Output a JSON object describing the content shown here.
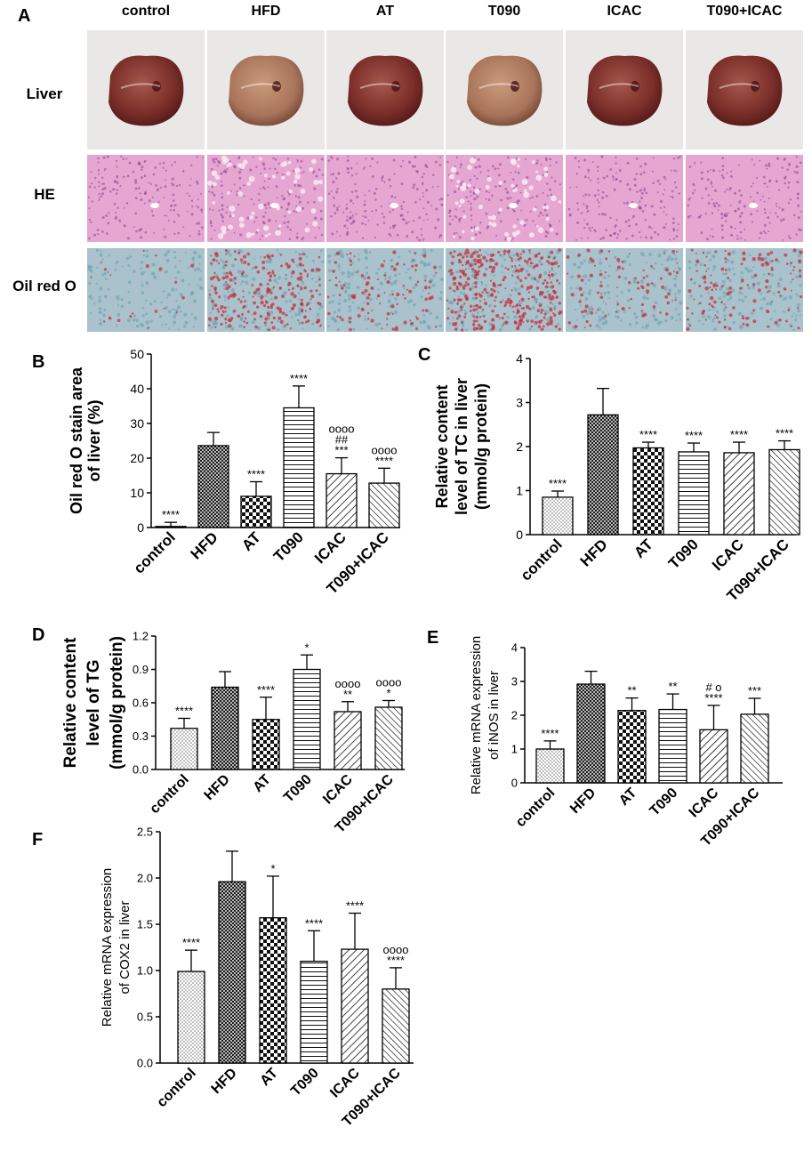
{
  "figure": {
    "panel_A": {
      "letter": "A",
      "groups": [
        "control",
        "HFD",
        "AT",
        "T090",
        "ICAC",
        "T090+ICAC"
      ],
      "rows": [
        "Liver",
        "HE",
        "Oil red O"
      ]
    }
  },
  "colors": {
    "axis": "#000000",
    "liver_bg": "#e9e8e6",
    "he_base": "#e6a6d2",
    "he_dot": "#8a3f8f",
    "oil_base": "#a9c2cb",
    "oil_blue": "#5e99b0",
    "oil_red": "#c9303d"
  },
  "chart_data": [
    {
      "panel": "B",
      "type": "bar",
      "categories": [
        "control",
        "HFD",
        "AT",
        "T090",
        "ICAC",
        "T090+ICAC"
      ],
      "values": [
        0.3,
        23.6,
        9.0,
        34.5,
        15.5,
        12.8
      ],
      "errors": [
        1.2,
        3.8,
        4.2,
        6.3,
        4.6,
        4.3
      ],
      "annotations": [
        [
          "****"
        ],
        [],
        [
          "****"
        ],
        [
          "****"
        ],
        [
          "oooo",
          "##",
          "***"
        ],
        [
          "oooo",
          "****"
        ]
      ],
      "ylabel": [
        "Oil red O stain area",
        "of liver (%)"
      ],
      "ylim": [
        0,
        50
      ],
      "yticks": [
        "0",
        "10",
        "20",
        "30",
        "40",
        "50"
      ]
    },
    {
      "panel": "C",
      "type": "bar",
      "categories": [
        "control",
        "HFD",
        "AT",
        "T090",
        "ICAC",
        "T090+ICAC"
      ],
      "values": [
        0.85,
        2.72,
        1.97,
        1.88,
        1.86,
        1.93
      ],
      "errors": [
        0.14,
        0.6,
        0.13,
        0.2,
        0.24,
        0.2
      ],
      "annotations": [
        [
          "****"
        ],
        [],
        [
          "****"
        ],
        [
          "****"
        ],
        [
          "****"
        ],
        [
          "****"
        ]
      ],
      "ylabel": [
        "Relative content",
        "level of TC in liver",
        "(mmol/g protein)"
      ],
      "ylim": [
        0,
        4
      ],
      "yticks": [
        "0",
        "1",
        "2",
        "3",
        "4"
      ]
    },
    {
      "panel": "D",
      "type": "bar",
      "categories": [
        "control",
        "HFD",
        "AT",
        "T090",
        "ICAC",
        "T090+ICAC"
      ],
      "values": [
        0.37,
        0.74,
        0.45,
        0.9,
        0.52,
        0.56
      ],
      "errors": [
        0.09,
        0.14,
        0.2,
        0.13,
        0.09,
        0.06
      ],
      "annotations": [
        [
          "****"
        ],
        [],
        [
          "****"
        ],
        [
          "*"
        ],
        [
          "oooo",
          "**"
        ],
        [
          "oooo",
          "*"
        ]
      ],
      "ylabel": [
        "Relative content",
        "level of TG",
        "(mmol/g protein)"
      ],
      "ylim": [
        0,
        1.2
      ],
      "yticks": [
        "0.0",
        "0.3",
        "0.6",
        "0.9",
        "1.2"
      ]
    },
    {
      "panel": "E",
      "type": "bar",
      "categories": [
        "control",
        "HFD",
        "AT",
        "T090",
        "ICAC",
        "T090+ICAC"
      ],
      "values": [
        1.0,
        2.92,
        2.14,
        2.17,
        1.57,
        2.03
      ],
      "errors": [
        0.24,
        0.38,
        0.37,
        0.46,
        0.72,
        0.47
      ],
      "annotations": [
        [
          "****"
        ],
        [],
        [
          "**"
        ],
        [
          "**"
        ],
        [
          "# o",
          "****"
        ],
        [
          "***"
        ]
      ],
      "ylabel": [
        "Relative mRNA expression",
        "of iNOS in liver"
      ],
      "ylim": [
        0,
        4
      ],
      "yticks": [
        "0",
        "1",
        "2",
        "3",
        "4"
      ]
    },
    {
      "panel": "F",
      "type": "bar",
      "categories": [
        "control",
        "HFD",
        "AT",
        "T090",
        "ICAC",
        "T090+ICAC"
      ],
      "values": [
        0.99,
        1.96,
        1.57,
        1.1,
        1.23,
        0.8
      ],
      "errors": [
        0.23,
        0.33,
        0.45,
        0.33,
        0.39,
        0.23
      ],
      "annotations": [
        [
          "****"
        ],
        [],
        [
          "*"
        ],
        [
          "****"
        ],
        [
          "****"
        ],
        [
          "oooo",
          "****"
        ]
      ],
      "ylabel": [
        "Relative mRNA expression",
        "of COX2 in liver"
      ],
      "ylim": [
        0,
        2.5
      ],
      "yticks": [
        "0.0",
        "0.5",
        "1.0",
        "1.5",
        "2.0",
        "2.5"
      ]
    }
  ]
}
